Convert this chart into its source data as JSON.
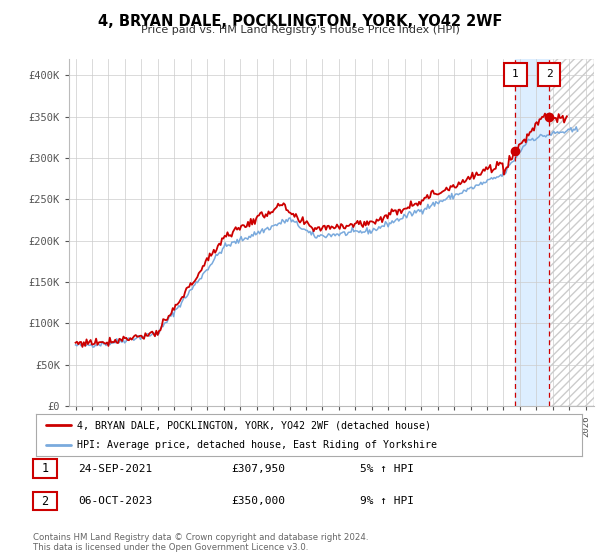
{
  "title": "4, BRYAN DALE, POCKLINGTON, YORK, YO42 2WF",
  "subtitle": "Price paid vs. HM Land Registry's House Price Index (HPI)",
  "legend_line1": "4, BRYAN DALE, POCKLINGTON, YORK, YO42 2WF (detached house)",
  "legend_line2": "HPI: Average price, detached house, East Riding of Yorkshire",
  "footer1": "Contains HM Land Registry data © Crown copyright and database right 2024.",
  "footer2": "This data is licensed under the Open Government Licence v3.0.",
  "transaction1_label": "1",
  "transaction1_date": "24-SEP-2021",
  "transaction1_price": "£307,950",
  "transaction1_hpi": "5% ↑ HPI",
  "transaction2_label": "2",
  "transaction2_date": "06-OCT-2023",
  "transaction2_price": "£350,000",
  "transaction2_hpi": "9% ↑ HPI",
  "hpi_color": "#7aaadd",
  "price_color": "#cc0000",
  "marker_color": "#cc0000",
  "shade_color": "#ddeeff",
  "hatch_color": "#cccccc",
  "dashed_line_color": "#cc0000",
  "ylim": [
    0,
    420000
  ],
  "xlim_start": 1994.6,
  "xlim_end": 2026.5,
  "transaction1_x": 2021.73,
  "transaction1_y": 307950,
  "transaction2_x": 2023.77,
  "transaction2_y": 350000,
  "shade_start": 2021.73,
  "shade_end": 2023.77,
  "hatch_start": 2023.77,
  "hatch_end": 2026.5
}
